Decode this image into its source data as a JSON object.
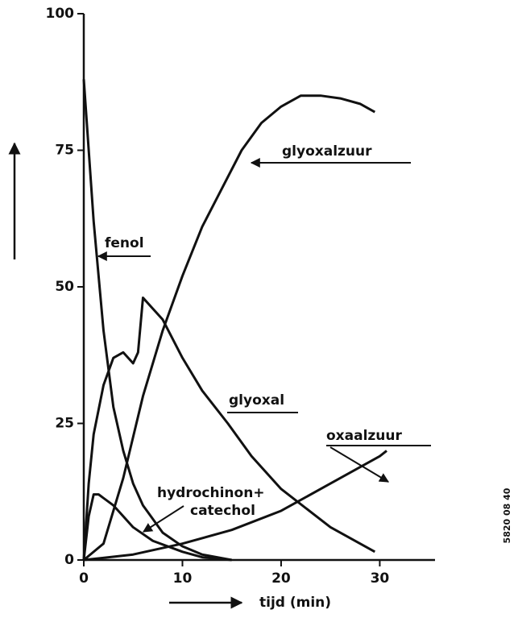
{
  "chart_data": {
    "type": "line",
    "xlabel": "tijd (min)",
    "xlim": [
      0,
      35.6
    ],
    "xticks": [
      0,
      10,
      20,
      30
    ],
    "ylim": [
      0,
      100
    ],
    "yticks": [
      0,
      25,
      50,
      75,
      100
    ],
    "color": "#111111",
    "series": [
      {
        "x": [
          0,
          0.5,
          1,
          1.5,
          2,
          3,
          4,
          5,
          6,
          8,
          10,
          12,
          15
        ],
        "values": [
          88,
          75,
          62,
          52,
          42,
          28,
          20,
          14,
          10,
          5,
          2.5,
          1,
          0
        ]
      },
      {
        "x": [
          0,
          0.5,
          1,
          2,
          3,
          4,
          5,
          5.5,
          6,
          8,
          10,
          12,
          14.6,
          17,
          20,
          25,
          29.5
        ],
        "values": [
          0,
          14,
          23,
          32,
          37,
          38,
          36,
          38,
          48,
          44,
          37,
          31,
          25,
          19,
          13,
          6,
          1.5
        ]
      },
      {
        "x": [
          0,
          2,
          4,
          6,
          8,
          10,
          12,
          14,
          16,
          18,
          20,
          22,
          24,
          26,
          28,
          29.5
        ],
        "values": [
          0,
          3,
          15,
          30,
          42,
          52,
          61,
          68,
          75,
          80,
          83,
          85,
          85,
          84.5,
          83.5,
          82
        ]
      },
      {
        "x": [
          0,
          0.5,
          1,
          1.5,
          3,
          5,
          7,
          10,
          12,
          15
        ],
        "values": [
          0,
          8,
          12,
          12,
          10,
          6,
          3.5,
          1.5,
          0.5,
          0
        ]
      },
      {
        "x": [
          0,
          5,
          10,
          15,
          20,
          25,
          30,
          30.7
        ],
        "values": [
          0,
          1,
          3,
          5.5,
          9,
          14,
          19,
          20
        ]
      }
    ],
    "annotations": [
      "glyoxalzuur",
      "fenol",
      "glyoxal",
      "oxaalzuur",
      "hydrochinon+",
      "catechol",
      "5820 08 40"
    ]
  }
}
